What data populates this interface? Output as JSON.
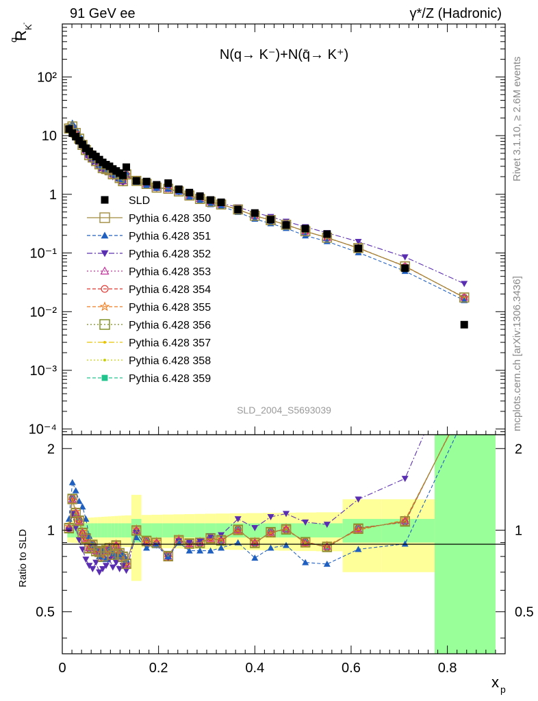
{
  "header": {
    "left": "91 GeV ee",
    "right": "γ*/Z (Hadronic)"
  },
  "side_labels": {
    "rivet": "Rivet 3.1.10, ≥ 2.6M events",
    "mcplots": "mcplots.cern.ch [arXiv:1306.3436]"
  },
  "chart_data": {
    "type": "scatter",
    "title": "N(q→ K⁻)+N(q̄→ K⁺)",
    "analysis_tag": "SLD_2004_S5693039",
    "ylabel": "R",
    "ylabel_sup": "q",
    "ylabel_sub": "K",
    "ylabel_sub_sup": "-",
    "xlabel": "x",
    "xlabel_sub": "p",
    "ratio_ylabel": "Ratio to SLD",
    "yscale": "log",
    "ylim": [
      8e-05,
      800
    ],
    "xlim": [
      0,
      0.92
    ],
    "ratio_ylim": [
      0.35,
      2.25
    ],
    "x_ticks": [
      "0",
      "0.2",
      "0.4",
      "0.6",
      "0.8"
    ],
    "y_ticks": [
      "10⁻⁴",
      "10⁻³",
      "10⁻²",
      "10⁻¹",
      "1",
      "10",
      "10²"
    ],
    "ratio_ticks": [
      "0.5",
      "1",
      "2"
    ],
    "legend_position": "left",
    "x": [
      0.014,
      0.021,
      0.028,
      0.035,
      0.042,
      0.049,
      0.056,
      0.063,
      0.07,
      0.077,
      0.084,
      0.091,
      0.098,
      0.105,
      0.112,
      0.119,
      0.126,
      0.133,
      0.154,
      0.175,
      0.196,
      0.22,
      0.242,
      0.264,
      0.286,
      0.308,
      0.33,
      0.365,
      0.4,
      0.433,
      0.465,
      0.505,
      0.55,
      0.615,
      0.712,
      0.835
    ],
    "data_series": {
      "name": "SLD",
      "values": [
        13.0,
        11.0,
        9.6,
        8.2,
        7.1,
        6.1,
        5.4,
        4.8,
        4.4,
        3.9,
        3.5,
        3.2,
        3.0,
        2.7,
        2.5,
        2.3,
        2.1,
        2.9,
        1.7,
        1.65,
        1.45,
        1.55,
        1.22,
        1.07,
        0.93,
        0.8,
        0.73,
        0.55,
        0.48,
        0.37,
        0.3,
        0.26,
        0.21,
        0.12,
        0.055,
        0.006
      ]
    },
    "series": [
      {
        "name": "Pythia 6.428 350",
        "color": "#a08c3c",
        "dash": "",
        "marker": "open-square",
        "ratio": [
          1.02,
          1.3,
          1.16,
          1.08,
          0.98,
          0.93,
          0.86,
          0.88,
          0.84,
          0.83,
          0.8,
          0.84,
          0.86,
          0.81,
          0.88,
          0.82,
          0.8,
          0.75,
          1.0,
          0.91,
          0.9,
          0.8,
          0.92,
          0.89,
          0.9,
          0.93,
          0.92,
          1.0,
          0.9,
          0.98,
          1.01,
          0.9,
          0.87,
          1.01,
          1.08,
          2.9
        ]
      },
      {
        "name": "Pythia 6.428 351",
        "color": "#1f5fbf",
        "dash": "5,3",
        "marker": "triangle-up",
        "ratio": [
          1.1,
          1.5,
          1.4,
          1.28,
          1.22,
          1.1,
          0.95,
          0.88,
          0.86,
          0.8,
          0.84,
          0.78,
          0.86,
          0.82,
          0.8,
          0.8,
          0.82,
          0.78,
          0.94,
          0.86,
          0.88,
          0.8,
          0.9,
          0.84,
          0.84,
          0.84,
          0.86,
          0.9,
          0.79,
          0.86,
          0.88,
          0.76,
          0.75,
          0.85,
          0.89,
          2.6
        ]
      },
      {
        "name": "Pythia 6.428 352",
        "color": "#5a2eb0",
        "dash": "8,3,2,3",
        "marker": "triangle-down",
        "ratio": [
          1.0,
          1.15,
          1.02,
          0.92,
          0.85,
          0.78,
          0.74,
          0.72,
          0.76,
          0.7,
          0.72,
          0.74,
          0.78,
          0.73,
          0.76,
          0.72,
          0.74,
          0.71,
          0.98,
          0.87,
          0.88,
          0.79,
          0.91,
          0.9,
          0.91,
          0.95,
          0.96,
          1.1,
          1.02,
          1.12,
          1.15,
          1.07,
          1.05,
          1.3,
          1.55,
          5.0
        ]
      },
      {
        "name": "Pythia 6.428 353",
        "color": "#c0309a",
        "dash": "2,3",
        "marker": "open-triangle"
      },
      {
        "name": "Pythia 6.428 354",
        "color": "#e0302a",
        "dash": "5,3",
        "marker": "open-circle"
      },
      {
        "name": "Pythia 6.428 355",
        "color": "#f07a1a",
        "dash": "5,3",
        "marker": "open-star"
      },
      {
        "name": "Pythia 6.428 356",
        "color": "#7a8a18",
        "dash": "2,3",
        "marker": "open-square"
      },
      {
        "name": "Pythia 6.428 357",
        "color": "#e6c400",
        "dash": "8,3,2,3",
        "marker": "small-dot"
      },
      {
        "name": "Pythia 6.428 358",
        "color": "#c8d000",
        "dash": "2,3",
        "marker": "small-dot"
      },
      {
        "name": "Pythia 6.428 359",
        "color": "#1ec48c",
        "dash": "5,3",
        "marker": "filled-square"
      }
    ]
  },
  "colors": {
    "band_green": "#99ff99",
    "band_yellow": "#ffff99",
    "data_marker": "#000000"
  }
}
